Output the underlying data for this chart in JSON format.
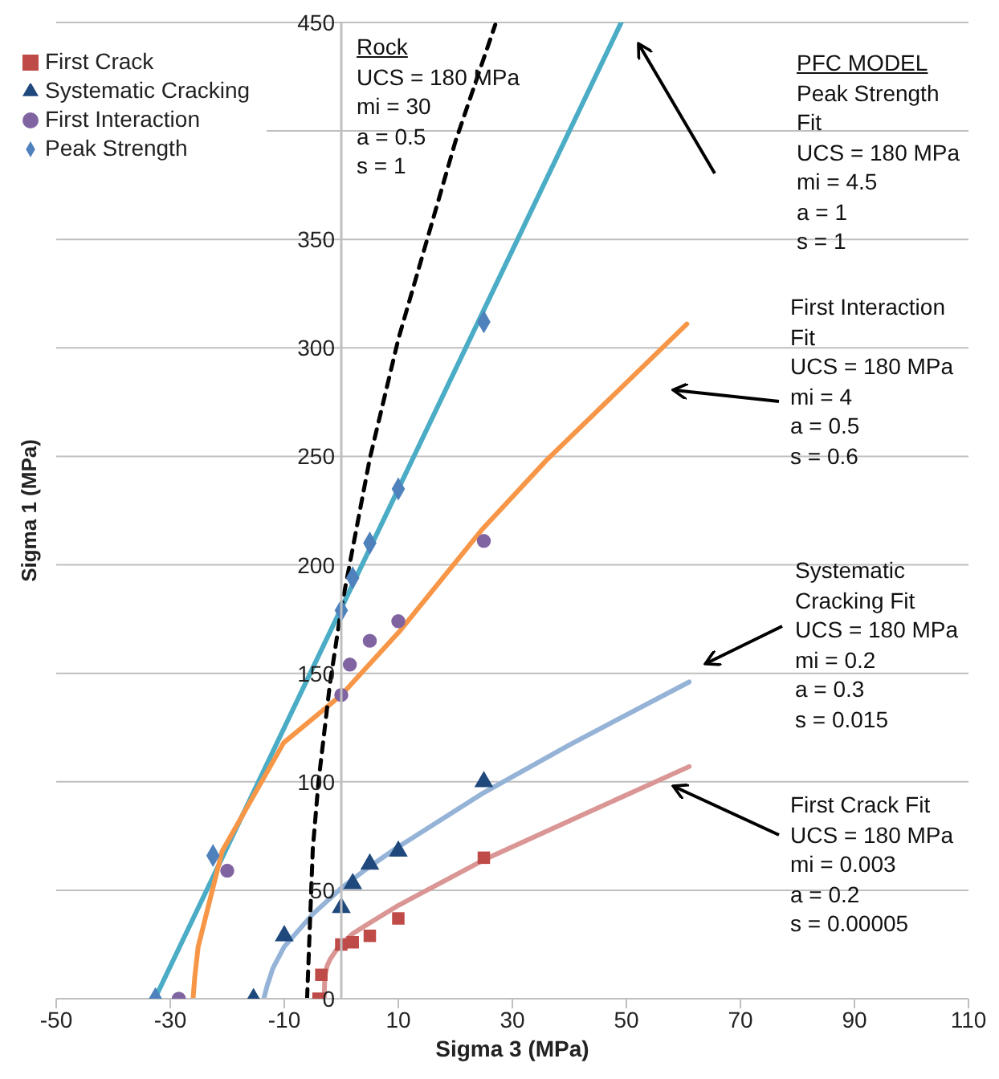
{
  "chart_data": {
    "type": "scatter",
    "xlabel": "Sigma 3 (MPa)",
    "ylabel": "Sigma 1 (MPa)",
    "xlim": [
      -50,
      110
    ],
    "xticks": [
      -50,
      -30,
      -10,
      10,
      30,
      50,
      70,
      90,
      110
    ],
    "ylim": [
      0,
      450
    ],
    "yticks": [
      0,
      50,
      100,
      150,
      200,
      250,
      300,
      350,
      {
        "value": 400,
        "label": null
      },
      450
    ],
    "grid": "y",
    "legend": "top left",
    "series": [
      {
        "type": "line",
        "color": "#4bacc6",
        "line_style": "solid",
        "x": [
          -32.7,
          0,
          49.1
        ],
        "values": [
          0,
          180,
          450
        ]
      },
      {
        "type": "line",
        "color": "#f79646",
        "line_style": "solid",
        "x": [
          -26,
          -25.7,
          -25.1,
          -20.9,
          -10.1,
          0,
          10.1,
          24.6,
          35.9,
          60.6
        ],
        "values": [
          0,
          10,
          24,
          68,
          118,
          140,
          169,
          216,
          248,
          311
        ]
      },
      {
        "type": "line",
        "color": "#95b3d7",
        "line_style": "solid",
        "x": [
          -13.6,
          -13,
          -12,
          -10,
          -5,
          0,
          5,
          10,
          25,
          40,
          61
        ],
        "values": [
          0,
          6,
          14,
          24,
          39,
          51,
          61,
          70,
          95,
          117,
          146
        ]
      },
      {
        "type": "line",
        "color": "#d99694",
        "line_style": "solid",
        "x": [
          -3,
          -2.9,
          -2.5,
          -2,
          -1,
          0,
          2,
          5,
          10,
          25,
          40,
          61
        ],
        "values": [
          0,
          10,
          15,
          18,
          22,
          25,
          30,
          35,
          43,
          64,
          82,
          107
        ]
      },
      {
        "type": "line",
        "color": "#000000",
        "line_style": "dashed",
        "x": [
          -6,
          -5,
          -4,
          -2,
          0,
          5,
          10,
          20,
          27
        ],
        "values": [
          0,
          69,
          100,
          145,
          180,
          249,
          304,
          395,
          449
        ]
      },
      {
        "name": "First Crack",
        "type": "scatter",
        "marker": "square",
        "color": "#be4b48",
        "x": [
          -4,
          -3.5,
          0,
          2,
          5,
          10,
          25
        ],
        "values": [
          0,
          11,
          25,
          26,
          29,
          37,
          65
        ]
      },
      {
        "name": "Systematic Cracking",
        "type": "scatter",
        "marker": "triangle",
        "color": "#1f497d",
        "x": [
          -15.4,
          -10,
          0,
          2,
          5,
          10,
          25
        ],
        "values": [
          0,
          29,
          42,
          53,
          62,
          68,
          100
        ]
      },
      {
        "name": "First Interaction",
        "type": "scatter",
        "marker": "circle",
        "color": "#8064a2",
        "x": [
          -28.5,
          -20,
          0,
          1.5,
          5,
          10,
          25
        ],
        "values": [
          0,
          59,
          140,
          154,
          165,
          174,
          211
        ]
      },
      {
        "name": "Peak Strength",
        "type": "scatter",
        "marker": "diamond",
        "color": "#4f81bd",
        "x": [
          -32.6,
          -22.5,
          0,
          2,
          5,
          10,
          25
        ],
        "values": [
          0,
          66,
          179,
          194,
          210,
          235,
          312
        ]
      }
    ],
    "annotations": [
      "Rock\nUCS = 180 MPa\nmi = 30\na = 0.5\ns = 1",
      "PFC MODEL\nPeak Strength\nFit\nUCS = 180 MPa\nmi = 4.5\na = 1\ns = 1",
      "First Interaction\nFit\nUCS = 180 MPa\nmi = 4\na = 0.5\ns = 0.6",
      "Systematic\nCracking Fit\nUCS = 180 MPa\nmi = 0.2\na = 0.3\ns = 0.015",
      "First Crack Fit\nUCS = 180 MPa\nmi = 0.003\na = 0.2\ns = 0.00005"
    ]
  }
}
